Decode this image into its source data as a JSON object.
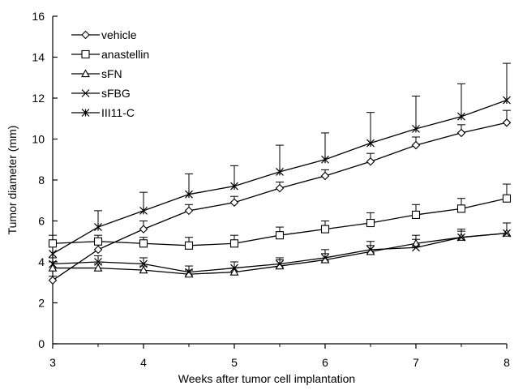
{
  "chart_data": {
    "type": "line",
    "xlabel": "Weeks after tumor cell implantation",
    "ylabel": "Tumor diameter (mm)",
    "xlim": [
      3,
      8
    ],
    "ylim": [
      0,
      16
    ],
    "x_ticks": [
      "3",
      "4",
      "5",
      "6",
      "7",
      "8"
    ],
    "y_ticks": [
      "0",
      "2",
      "4",
      "6",
      "8",
      "10",
      "12",
      "14",
      "16"
    ],
    "grid": false,
    "legend_position": "top-left",
    "x": [
      3,
      3.5,
      4,
      4.5,
      5,
      5.5,
      6,
      6.5,
      7,
      7.5,
      8
    ],
    "series": [
      {
        "name": "vehicle",
        "marker": "diamond",
        "values": [
          3.1,
          4.6,
          5.6,
          6.5,
          6.9,
          7.6,
          8.2,
          8.9,
          9.7,
          10.3,
          10.8
        ],
        "errors": [
          0.2,
          0.3,
          0.4,
          0.3,
          0.3,
          0.3,
          0.3,
          0.4,
          0.4,
          0.4,
          0.6
        ]
      },
      {
        "name": "anastellin",
        "marker": "square",
        "values": [
          4.9,
          5.0,
          4.9,
          4.8,
          4.9,
          5.3,
          5.6,
          5.9,
          6.3,
          6.6,
          7.1
        ],
        "errors": [
          0.4,
          0.3,
          0.3,
          0.4,
          0.4,
          0.4,
          0.4,
          0.5,
          0.5,
          0.5,
          0.7
        ]
      },
      {
        "name": "sFN",
        "marker": "triangle",
        "values": [
          3.7,
          3.7,
          3.6,
          3.4,
          3.5,
          3.8,
          4.1,
          4.5,
          4.9,
          5.2,
          5.4
        ],
        "errors": [
          0.3,
          0.2,
          0.2,
          0.2,
          0.2,
          0.3,
          0.3,
          0.3,
          0.4,
          0.3,
          0.5
        ]
      },
      {
        "name": "sFBG",
        "marker": "x",
        "values": [
          3.9,
          4.0,
          3.9,
          3.5,
          3.7,
          3.9,
          4.2,
          4.6,
          4.7,
          5.2,
          5.4
        ],
        "errors": [
          0.3,
          0.3,
          0.3,
          0.3,
          0.3,
          0.3,
          0.4,
          0.4,
          0.4,
          0.4,
          0.5
        ]
      },
      {
        "name": "III11-C",
        "marker": "asterisk",
        "values": [
          4.4,
          5.7,
          6.5,
          7.3,
          7.7,
          8.4,
          9.0,
          9.8,
          10.5,
          11.1,
          11.9
        ],
        "errors": [
          0.6,
          0.8,
          0.9,
          1.0,
          1.0,
          1.3,
          1.3,
          1.5,
          1.6,
          1.6,
          1.8
        ]
      }
    ]
  }
}
